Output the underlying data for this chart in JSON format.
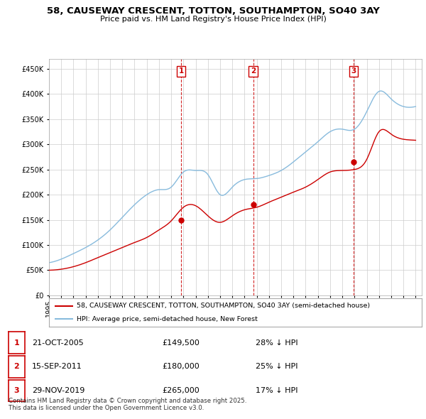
{
  "title": "58, CAUSEWAY CRESCENT, TOTTON, SOUTHAMPTON, SO40 3AY",
  "subtitle": "Price paid vs. HM Land Registry's House Price Index (HPI)",
  "ylim": [
    0,
    470000
  ],
  "yticks": [
    0,
    50000,
    100000,
    150000,
    200000,
    250000,
    300000,
    350000,
    400000,
    450000
  ],
  "xlim_start": 1995.0,
  "xlim_end": 2025.5,
  "sale_dates": [
    2005.81,
    2011.71,
    2019.91
  ],
  "sale_prices": [
    149500,
    180000,
    265000
  ],
  "sale_labels": [
    "1",
    "2",
    "3"
  ],
  "legend_line1": "58, CAUSEWAY CRESCENT, TOTTON, SOUTHAMPTON, SO40 3AY (semi-detached house)",
  "legend_line2": "HPI: Average price, semi-detached house, New Forest",
  "table_rows": [
    [
      "1",
      "21-OCT-2005",
      "£149,500",
      "28% ↓ HPI"
    ],
    [
      "2",
      "15-SEP-2011",
      "£180,000",
      "25% ↓ HPI"
    ],
    [
      "3",
      "29-NOV-2019",
      "£265,000",
      "17% ↓ HPI"
    ]
  ],
  "footnote": "Contains HM Land Registry data © Crown copyright and database right 2025.\nThis data is licensed under the Open Government Licence v3.0.",
  "line_color_red": "#CC0000",
  "line_color_blue": "#88BBDD",
  "vline_color": "#CC0000",
  "background_color": "#FFFFFF",
  "grid_color": "#CCCCCC",
  "hpi_years": [
    1995,
    1996,
    1997,
    1998,
    1999,
    2000,
    2001,
    2002,
    2003,
    2004,
    2005,
    2006,
    2007,
    2008,
    2009,
    2010,
    2011,
    2012,
    2013,
    2014,
    2015,
    2016,
    2017,
    2018,
    2019,
    2020,
    2021,
    2022,
    2023,
    2024,
    2025
  ],
  "hpi_prices": [
    65000,
    72000,
    83000,
    95000,
    110000,
    130000,
    155000,
    180000,
    200000,
    210000,
    215000,
    245000,
    248000,
    240000,
    200000,
    215000,
    230000,
    232000,
    238000,
    248000,
    265000,
    285000,
    305000,
    325000,
    330000,
    330000,
    365000,
    405000,
    390000,
    375000,
    375000
  ],
  "sold_years": [
    1995,
    1996,
    1997,
    1998,
    1999,
    2000,
    2001,
    2002,
    2003,
    2004,
    2005,
    2006,
    2007,
    2008,
    2009,
    2010,
    2011,
    2012,
    2013,
    2014,
    2015,
    2016,
    2017,
    2018,
    2019,
    2020,
    2021,
    2022,
    2023,
    2024,
    2025
  ],
  "sold_prices": [
    50000,
    52000,
    57000,
    65000,
    75000,
    85000,
    95000,
    105000,
    115000,
    130000,
    148000,
    175000,
    178000,
    158000,
    145000,
    158000,
    170000,
    175000,
    185000,
    195000,
    205000,
    215000,
    230000,
    245000,
    248000,
    250000,
    270000,
    325000,
    320000,
    310000,
    308000
  ]
}
